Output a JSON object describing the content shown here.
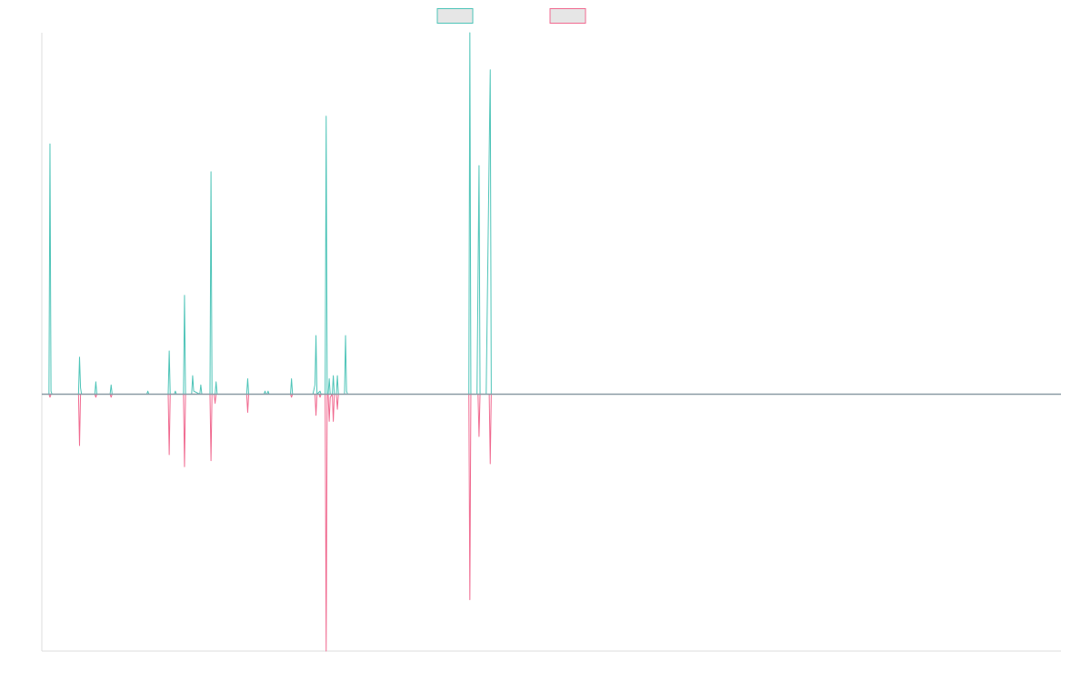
{
  "chart_data": {
    "type": "line",
    "title": "",
    "xlabel": "",
    "ylabel": "",
    "grid": false,
    "legend_position": "top-center",
    "ylim": [
      -1,
      1
    ],
    "baseline": 0,
    "series": [
      {
        "key": "positive",
        "color": "#4ec4b8",
        "points": [
          [
            0,
            0
          ],
          [
            7,
            0
          ],
          [
            8,
            0.81
          ],
          [
            9,
            0.01
          ],
          [
            10,
            0
          ],
          [
            25,
            0
          ],
          [
            36,
            0
          ],
          [
            37,
            0.12
          ],
          [
            38,
            0.02
          ],
          [
            39,
            0
          ],
          [
            44,
            0
          ],
          [
            52,
            0
          ],
          [
            53,
            0.04
          ],
          [
            54,
            0
          ],
          [
            59,
            0
          ],
          [
            67,
            0
          ],
          [
            68,
            0.03
          ],
          [
            69,
            0
          ],
          [
            103,
            0
          ],
          [
            104,
            0.01
          ],
          [
            105,
            0
          ],
          [
            124,
            0
          ],
          [
            125,
            0.14
          ],
          [
            126,
            0
          ],
          [
            130,
            0
          ],
          [
            131,
            0.01
          ],
          [
            132,
            0
          ],
          [
            137,
            0
          ],
          [
            139,
            0
          ],
          [
            140,
            0.32
          ],
          [
            141,
            0
          ],
          [
            145,
            0
          ],
          [
            147,
            0
          ],
          [
            148,
            0.06
          ],
          [
            149,
            0.01
          ],
          [
            155,
            0
          ],
          [
            156,
            0.03
          ],
          [
            157,
            0
          ],
          [
            165,
            0
          ],
          [
            166,
            0.72
          ],
          [
            167,
            0
          ],
          [
            170,
            0
          ],
          [
            171,
            0.04
          ],
          [
            172,
            0
          ],
          [
            200,
            0
          ],
          [
            201,
            0
          ],
          [
            202,
            0.05
          ],
          [
            203,
            0
          ],
          [
            218,
            0
          ],
          [
            219,
            0.01
          ],
          [
            220,
            0
          ],
          [
            221,
            0
          ],
          [
            222,
            0.01
          ],
          [
            223,
            0
          ],
          [
            244,
            0
          ],
          [
            245,
            0.05
          ],
          [
            246,
            0
          ],
          [
            266,
            0
          ],
          [
            268,
            0.03
          ],
          [
            269,
            0.19
          ],
          [
            270,
            0
          ],
          [
            273,
            0.01
          ],
          [
            274,
            0
          ],
          [
            278,
            0
          ],
          [
            279,
            0.9
          ],
          [
            280,
            0
          ],
          [
            281,
            0
          ],
          [
            282,
            0.05
          ],
          [
            283,
            0
          ],
          [
            285,
            0
          ],
          [
            286,
            0.06
          ],
          [
            287,
            0
          ],
          [
            289,
            0
          ],
          [
            290,
            0.06
          ],
          [
            291,
            0
          ],
          [
            297,
            0
          ],
          [
            298,
            0.19
          ],
          [
            299,
            0.01
          ],
          [
            300,
            0
          ],
          [
            419,
            0
          ],
          [
            420,
            1.17
          ],
          [
            421,
            0
          ],
          [
            427,
            0
          ],
          [
            429,
            0.74
          ],
          [
            430,
            0
          ],
          [
            436,
            0
          ],
          [
            440,
            1.05
          ],
          [
            441,
            0
          ],
          [
            1000,
            0
          ]
        ]
      },
      {
        "key": "negative",
        "color": "#f06a90",
        "points": [
          [
            0,
            0
          ],
          [
            7,
            0
          ],
          [
            8,
            -0.01
          ],
          [
            9,
            0
          ],
          [
            10,
            0
          ],
          [
            36,
            0
          ],
          [
            37,
            -0.17
          ],
          [
            38,
            0
          ],
          [
            39,
            0
          ],
          [
            52,
            0
          ],
          [
            53,
            -0.01
          ],
          [
            54,
            0
          ],
          [
            67,
            0
          ],
          [
            68,
            -0.01
          ],
          [
            69,
            0
          ],
          [
            124,
            0
          ],
          [
            125,
            -0.2
          ],
          [
            126,
            0
          ],
          [
            139,
            0
          ],
          [
            140,
            -0.24
          ],
          [
            141,
            0
          ],
          [
            165,
            0
          ],
          [
            166,
            -0.22
          ],
          [
            167,
            0
          ],
          [
            169,
            0
          ],
          [
            170,
            -0.03
          ],
          [
            171,
            0
          ],
          [
            201,
            0
          ],
          [
            202,
            -0.06
          ],
          [
            203,
            0
          ],
          [
            244,
            0
          ],
          [
            245,
            -0.01
          ],
          [
            246,
            0
          ],
          [
            268,
            0
          ],
          [
            269,
            -0.07
          ],
          [
            270,
            0
          ],
          [
            272,
            0
          ],
          [
            273,
            -0.01
          ],
          [
            274,
            0
          ],
          [
            278,
            0
          ],
          [
            279,
            -0.85
          ],
          [
            280,
            0
          ],
          [
            281,
            0
          ],
          [
            282,
            -0.09
          ],
          [
            283,
            -0.01
          ],
          [
            285,
            0
          ],
          [
            286,
            -0.09
          ],
          [
            287,
            0
          ],
          [
            289,
            0
          ],
          [
            290,
            -0.05
          ],
          [
            291,
            0
          ],
          [
            419,
            0
          ],
          [
            420,
            -0.68
          ],
          [
            421,
            0
          ],
          [
            428,
            0
          ],
          [
            429,
            -0.14
          ],
          [
            430,
            0
          ],
          [
            439,
            0
          ],
          [
            440,
            -0.23
          ],
          [
            441,
            0
          ],
          [
            1000,
            0
          ]
        ]
      }
    ]
  }
}
